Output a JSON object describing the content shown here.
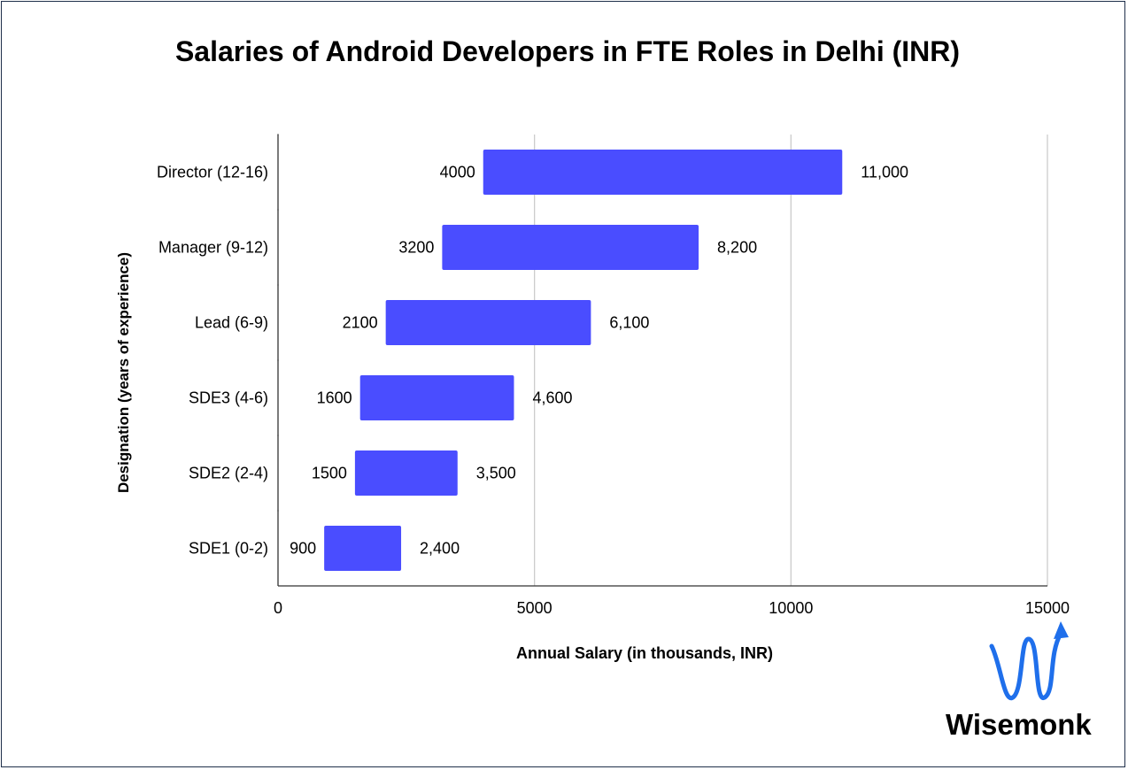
{
  "title": "Salaries of Android Developers in FTE Roles in Delhi (INR)",
  "brand": {
    "name": "Wisemonk",
    "mark_color": "#1f6feb",
    "icon": "wave-arrow-logo"
  },
  "chart_data": {
    "type": "bar",
    "orientation": "horizontal",
    "style": "floating-range",
    "title": "Salaries of Android Developers in FTE Roles in Delhi (INR)",
    "xlabel": "Annual Salary (in thousands, INR)",
    "ylabel": "Designation (years of experience)",
    "xlim": [
      0,
      15000
    ],
    "xticks": [
      "0",
      "5000",
      "10000",
      "15000"
    ],
    "xtick_values": [
      0,
      5000,
      10000,
      15000
    ],
    "grid": "vertical",
    "bar_color": "#4a4dff",
    "categories": [
      "Director (12-16)",
      "Manager (9-12)",
      "Lead (6-9)",
      "SDE3 (4-6)",
      "SDE2 (2-4)",
      "SDE1 (0-2)"
    ],
    "low_values": [
      4000,
      3200,
      2100,
      1600,
      1500,
      900
    ],
    "high_values": [
      11000,
      8200,
      6100,
      4600,
      3500,
      2400
    ],
    "low_labels": [
      "4000",
      "3200",
      "2100",
      "1600",
      "1500",
      "900"
    ],
    "high_labels": [
      "11,000",
      "8,200",
      "6,100",
      "4,600",
      "3,500",
      "2,400"
    ]
  }
}
